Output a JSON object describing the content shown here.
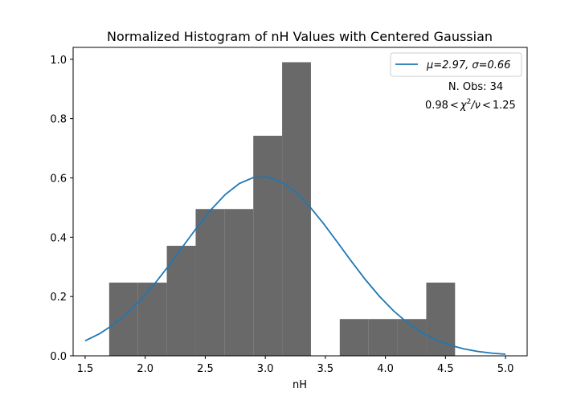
{
  "chart_data": {
    "type": "bar",
    "title": "Normalized Histogram of nH Values with Centered Gaussian",
    "xlabel": "nH",
    "ylabel": "",
    "xlim": [
      1.4,
      5.18
    ],
    "ylim": [
      0.0,
      1.04
    ],
    "xticks": [
      1.5,
      2.0,
      2.5,
      3.0,
      3.5,
      4.0,
      4.5,
      5.0
    ],
    "xtick_labels": [
      "1.5",
      "2.0",
      "2.5",
      "3.0",
      "3.5",
      "4.0",
      "4.5",
      "5.0"
    ],
    "yticks": [
      0.0,
      0.2,
      0.4,
      0.6,
      0.8,
      1.0
    ],
    "ytick_labels": [
      "0.0",
      "0.2",
      "0.4",
      "0.6",
      "0.8",
      "1.0"
    ],
    "grid": false,
    "legend_placement": "top-right",
    "histogram": {
      "color": "#696969",
      "bins": [
        {
          "x0": 1.7,
          "x1": 1.94,
          "value": 0.247
        },
        {
          "x0": 1.94,
          "x1": 2.18,
          "value": 0.247
        },
        {
          "x0": 2.18,
          "x1": 2.42,
          "value": 0.371
        },
        {
          "x0": 2.42,
          "x1": 2.66,
          "value": 0.495
        },
        {
          "x0": 2.66,
          "x1": 2.9,
          "value": 0.495
        },
        {
          "x0": 2.9,
          "x1": 3.14,
          "value": 0.742
        },
        {
          "x0": 3.14,
          "x1": 3.38,
          "value": 0.99
        },
        {
          "x0": 3.38,
          "x1": 3.62,
          "value": 0.0
        },
        {
          "x0": 3.62,
          "x1": 3.86,
          "value": 0.124
        },
        {
          "x0": 3.86,
          "x1": 4.1,
          "value": 0.124
        },
        {
          "x0": 4.1,
          "x1": 4.34,
          "value": 0.124
        },
        {
          "x0": 4.34,
          "x1": 4.58,
          "value": 0.247
        }
      ]
    },
    "gaussian": {
      "mu": 2.97,
      "sigma": 0.66,
      "x_start": 1.5,
      "x_end": 5.0,
      "color": "#1f77b4"
    },
    "legend": {
      "entries": [
        {
          "label_prefix": "μ=2.97, ",
          "label_suffix": "σ=0.66",
          "color": "#1f77b4"
        }
      ]
    },
    "annotations": {
      "n_obs": "N. Obs: 34",
      "chi_lo": "0.98",
      "chi_sym": "χ",
      "chi_sup": "2",
      "chi_nu": "/ν",
      "chi_hi": "1.25"
    }
  }
}
